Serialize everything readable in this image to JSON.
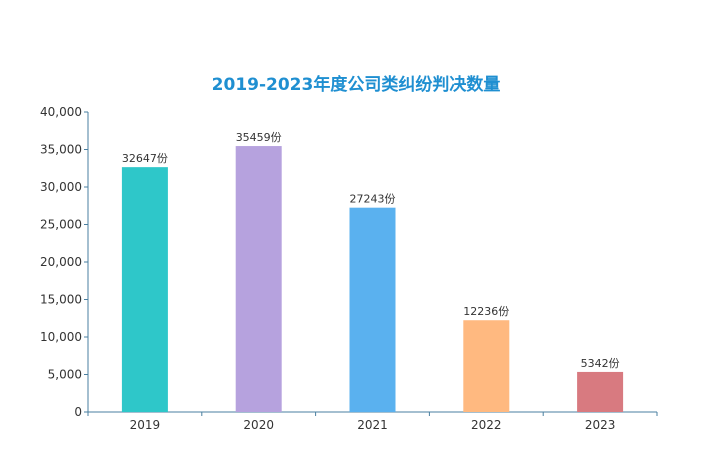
{
  "chart_data": {
    "type": "bar",
    "title": "2019-2023年度公司类纠纷判决数量",
    "xlabel": "",
    "ylabel": "",
    "categories": [
      "2019",
      "2020",
      "2021",
      "2022",
      "2023"
    ],
    "values": [
      32647,
      35459,
      27243,
      12236,
      5342
    ],
    "value_suffix": "份",
    "ylim": [
      0,
      40000
    ],
    "yticks": [
      0,
      5000,
      10000,
      15000,
      20000,
      25000,
      30000,
      35000,
      40000
    ],
    "ytick_labels": [
      "0",
      "5,000",
      "10,000",
      "15,000",
      "20,000",
      "25,000",
      "30,000",
      "35,000",
      "40,000"
    ],
    "bar_colors": [
      "#2ec7c9",
      "#b6a2de",
      "#5ab1ef",
      "#ffb980",
      "#d87a80"
    ],
    "grid": false,
    "legend": "none"
  }
}
